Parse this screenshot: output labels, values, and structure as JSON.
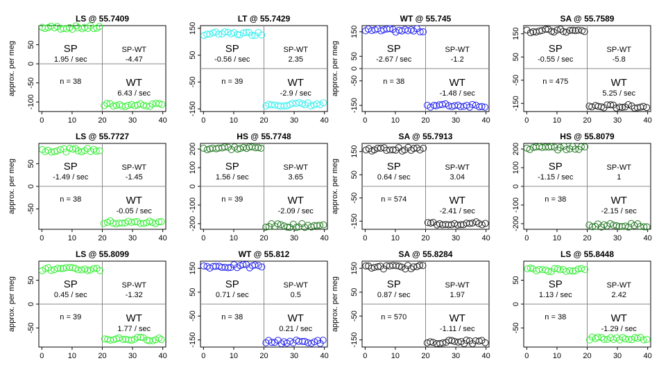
{
  "chart_data": [
    {
      "type": "scatter",
      "title": "LS @ 55.7409",
      "ylabel": "approx. per meg",
      "color": "#33ee33",
      "xlim": [
        -1,
        41
      ],
      "ylim": [
        -125,
        100
      ],
      "xticks": [
        0,
        10,
        20,
        30,
        40
      ],
      "yticks": [
        -100,
        -50,
        0,
        50
      ],
      "sp_value": 95,
      "wt_value": -108,
      "labels": {
        "sp": "SP",
        "sp_rate": "1.95 / sec",
        "spwt": "SP-WT",
        "spwt_val": "-4.47",
        "n": "n = 38",
        "wt": "WT",
        "wt_rate": "6.43 / sec"
      }
    },
    {
      "type": "scatter",
      "title": "LT @ 55.7429",
      "ylabel": "",
      "color": "#33eeee",
      "xlim": [
        -1,
        41
      ],
      "ylim": [
        -160,
        160
      ],
      "xticks": [
        0,
        10,
        20,
        30,
        40
      ],
      "yticks": [
        -150,
        -50,
        50,
        150
      ],
      "sp_value": 130,
      "wt_value": -133,
      "labels": {
        "sp": "SP",
        "sp_rate": "-0.56 / sec",
        "spwt": "SP-WT",
        "spwt_val": "2.35",
        "n": "n = 39",
        "wt": "WT",
        "wt_rate": "-2.9 / sec"
      }
    },
    {
      "type": "scatter",
      "title": "WT @ 55.745",
      "ylabel": "approx. per meg",
      "color": "#2222ee",
      "xlim": [
        -1,
        41
      ],
      "ylim": [
        -175,
        175
      ],
      "xticks": [
        0,
        10,
        20,
        30,
        40
      ],
      "yticks": [
        -150,
        -50,
        0,
        50,
        150
      ],
      "sp_value": 155,
      "wt_value": -150,
      "labels": {
        "sp": "SP",
        "sp_rate": "-2.67 / sec",
        "spwt": "SP-WT",
        "spwt_val": "-1.2",
        "n": "n = 38",
        "wt": "WT",
        "wt_rate": "-1.48 / sec"
      }
    },
    {
      "type": "scatter",
      "title": "SA @ 55.7589",
      "ylabel": "",
      "color": "#222222",
      "xlim": [
        -1,
        41
      ],
      "ylim": [
        -185,
        185
      ],
      "xticks": [
        0,
        10,
        20,
        30,
        40
      ],
      "yticks": [
        -150,
        -50,
        50,
        150
      ],
      "sp_value": 162,
      "wt_value": -163,
      "labels": {
        "sp": "SP",
        "sp_rate": "-0.55 / sec",
        "spwt": "SP-WT",
        "spwt_val": "-5.8",
        "n": "n = 475",
        "wt": "WT",
        "wt_rate": "5.25 / sec"
      }
    },
    {
      "type": "scatter",
      "title": "LS @ 55.7727",
      "ylabel": "approx. per meg",
      "color": "#33ee33",
      "xlim": [
        -1,
        41
      ],
      "ylim": [
        -95,
        95
      ],
      "xticks": [
        0,
        10,
        20,
        30,
        40
      ],
      "yticks": [
        -50,
        0,
        50
      ],
      "sp_value": 80,
      "wt_value": -80,
      "labels": {
        "sp": "SP",
        "sp_rate": "-1.49 / sec",
        "spwt": "SP-WT",
        "spwt_val": "-1.45",
        "n": "n = 38",
        "wt": "WT",
        "wt_rate": "-0.05 / sec"
      }
    },
    {
      "type": "scatter",
      "title": "HS @ 55.7748",
      "ylabel": "",
      "color": "#227722",
      "xlim": [
        -1,
        41
      ],
      "ylim": [
        -230,
        230
      ],
      "xticks": [
        0,
        10,
        20,
        30,
        40
      ],
      "yticks": [
        -200,
        -100,
        0,
        100,
        200
      ],
      "sp_value": 205,
      "wt_value": -210,
      "labels": {
        "sp": "SP",
        "sp_rate": "1.56 / sec",
        "spwt": "SP-WT",
        "spwt_val": "3.65",
        "n": "n = 39",
        "wt": "WT",
        "wt_rate": "-2.09 / sec"
      }
    },
    {
      "type": "scatter",
      "title": "SA @ 55.7913",
      "ylabel": "approx. per meg",
      "color": "#222222",
      "xlim": [
        -1,
        41
      ],
      "ylim": [
        -185,
        185
      ],
      "xticks": [
        0,
        10,
        20,
        30,
        40
      ],
      "yticks": [
        -150,
        -50,
        50,
        150
      ],
      "sp_value": 160,
      "wt_value": -160,
      "labels": {
        "sp": "SP",
        "sp_rate": "0.64 / sec",
        "spwt": "SP-WT",
        "spwt_val": "3.04",
        "n": "n = 574",
        "wt": "WT",
        "wt_rate": "-2.41 / sec"
      }
    },
    {
      "type": "scatter",
      "title": "HS @ 55.8079",
      "ylabel": "",
      "color": "#227722",
      "xlim": [
        -1,
        41
      ],
      "ylim": [
        -230,
        230
      ],
      "xticks": [
        0,
        10,
        20,
        30,
        40
      ],
      "yticks": [
        -200,
        -100,
        0,
        100,
        200
      ],
      "sp_value": 205,
      "wt_value": -208,
      "labels": {
        "sp": "SP",
        "sp_rate": "-1.15 / sec",
        "spwt": "SP-WT",
        "spwt_val": "1",
        "n": "n = 38",
        "wt": "WT",
        "wt_rate": "-2.15 / sec"
      }
    },
    {
      "type": "scatter",
      "title": "LS @ 55.8099",
      "ylabel": "approx. per meg",
      "color": "#33ee33",
      "xlim": [
        -1,
        41
      ],
      "ylim": [
        -90,
        90
      ],
      "xticks": [
        0,
        10,
        20,
        30,
        40
      ],
      "yticks": [
        -50,
        0,
        50
      ],
      "sp_value": 73,
      "wt_value": -73,
      "labels": {
        "sp": "SP",
        "sp_rate": "0.45 / sec",
        "spwt": "SP-WT",
        "spwt_val": "-1.32",
        "n": "n = 39",
        "wt": "WT",
        "wt_rate": "1.77 / sec"
      }
    },
    {
      "type": "scatter",
      "title": "WT @ 55.812",
      "ylabel": "",
      "color": "#2222ee",
      "xlim": [
        -1,
        41
      ],
      "ylim": [
        -180,
        180
      ],
      "xticks": [
        0,
        10,
        20,
        30,
        40
      ],
      "yticks": [
        -150,
        -50,
        50,
        150
      ],
      "sp_value": 158,
      "wt_value": -158,
      "labels": {
        "sp": "SP",
        "sp_rate": "0.71 / sec",
        "spwt": "SP-WT",
        "spwt_val": "0.5",
        "n": "n = 38",
        "wt": "WT",
        "wt_rate": "0.21 / sec"
      }
    },
    {
      "type": "scatter",
      "title": "SA @ 55.8284",
      "ylabel": "approx. per meg",
      "color": "#222222",
      "xlim": [
        -1,
        41
      ],
      "ylim": [
        -180,
        180
      ],
      "xticks": [
        0,
        10,
        20,
        30,
        40
      ],
      "yticks": [
        -150,
        -50,
        50,
        150
      ],
      "sp_value": 155,
      "wt_value": -158,
      "labels": {
        "sp": "SP",
        "sp_rate": "0.87 / sec",
        "spwt": "SP-WT",
        "spwt_val": "1.97",
        "n": "n = 570",
        "wt": "WT",
        "wt_rate": "-1.11 / sec"
      }
    },
    {
      "type": "scatter",
      "title": "LS @ 55.8448",
      "ylabel": "",
      "color": "#33ee33",
      "xlim": [
        -1,
        41
      ],
      "ylim": [
        -90,
        90
      ],
      "xticks": [
        0,
        10,
        20,
        30,
        40
      ],
      "yticks": [
        -50,
        0,
        50
      ],
      "sp_value": 72,
      "wt_value": -72,
      "labels": {
        "sp": "SP",
        "sp_rate": "1.13 / sec",
        "spwt": "SP-WT",
        "spwt_val": "2.42",
        "n": "n = 38",
        "wt": "WT",
        "wt_rate": "-1.29 / sec"
      }
    }
  ]
}
